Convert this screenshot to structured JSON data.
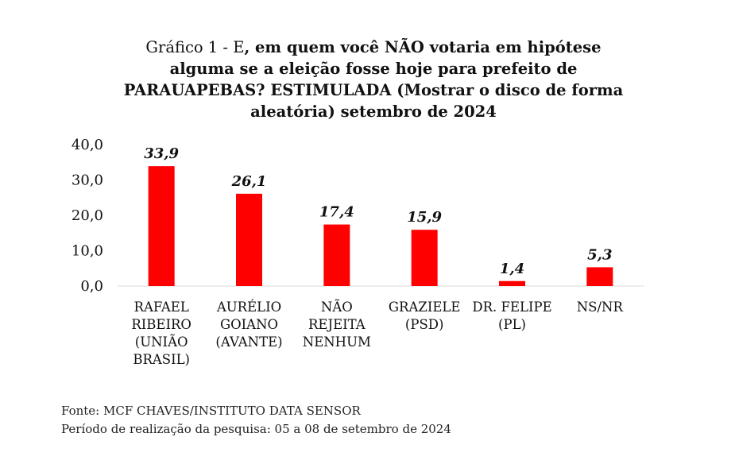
{
  "title": {
    "prefix": "Gráfico 1 - E",
    "main": ", em quem você NÃO votaria em hipótese alguma se a eleição fosse hoje para prefeito de PARAUAPEBAS? ESTIMULADA (Mostrar o disco de forma aleatória) setembro de 2024"
  },
  "chart_data": {
    "type": "bar",
    "categories": [
      [
        "RAFAEL",
        "RIBEIRO",
        "(UNIÃO",
        "BRASIL)"
      ],
      [
        "AURÉLIO",
        "GOIANO",
        "(AVANTE)"
      ],
      [
        "NÃO",
        "REJEITA",
        "NENHUM"
      ],
      [
        "GRAZIELE",
        "(PSD)"
      ],
      [
        "DR. FELIPE",
        "(PL)"
      ],
      [
        "NS/NR"
      ]
    ],
    "values": [
      33.9,
      26.1,
      17.4,
      15.9,
      1.4,
      5.3
    ],
    "value_labels": [
      "33,9",
      "26,1",
      "17,4",
      "15,9",
      "1,4",
      "5,3"
    ],
    "yticks": [
      {
        "value": 0,
        "label": "0,0"
      },
      {
        "value": 10,
        "label": "10,0"
      },
      {
        "value": 20,
        "label": "20,0"
      },
      {
        "value": 30,
        "label": "30,0"
      },
      {
        "value": 40,
        "label": "40,0"
      }
    ],
    "ylim": [
      0,
      40
    ],
    "bar_color": "#ff0000",
    "axis_color": "#d9d9d9"
  },
  "footer": {
    "source": "Fonte: MCF CHAVES/INSTITUTO DATA SENSOR",
    "period": "Período de realização da pesquisa: 05 a 08 de setembro de 2024"
  }
}
